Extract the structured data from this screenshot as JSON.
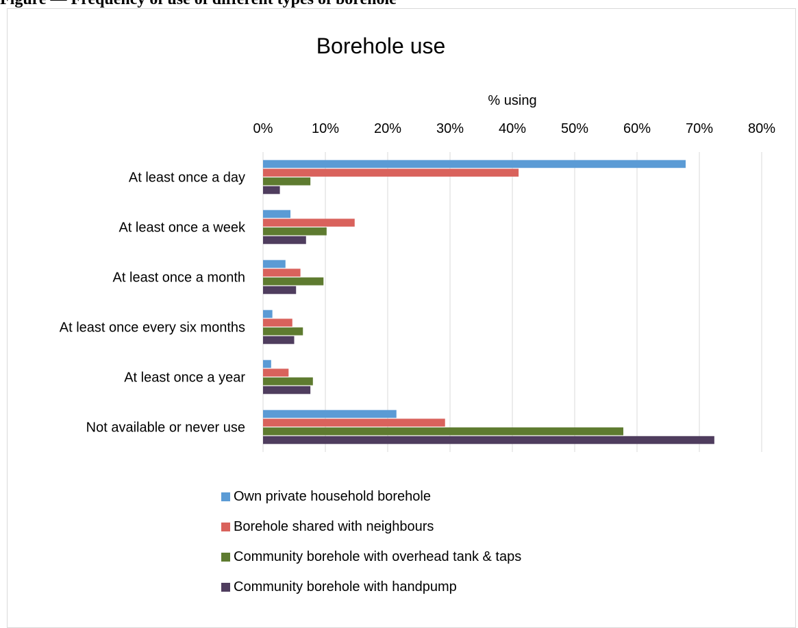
{
  "caption": "Figure — Frequency of use of different types of borehole",
  "chart_data": {
    "type": "bar",
    "orientation": "horizontal",
    "title": "Borehole use",
    "xlabel": "% using",
    "ylabel": "",
    "xlim": [
      0,
      0.8
    ],
    "x_ticks": [
      "0%",
      "10%",
      "20%",
      "30%",
      "40%",
      "50%",
      "60%",
      "70%",
      "80%"
    ],
    "x_axis_position": "top",
    "grid": true,
    "legend_position": "bottom",
    "categories": [
      "At least once a day",
      "At least once a week",
      "At least once a month",
      "At least once every six months",
      "At least once a year",
      "Not available or never use"
    ],
    "series": [
      {
        "name": "Own private household borehole",
        "color": "#5b9bd5",
        "values": [
          0.678,
          0.044,
          0.036,
          0.015,
          0.013,
          0.214
        ]
      },
      {
        "name": "Borehole shared with neighbours",
        "color": "#d9625c",
        "values": [
          0.41,
          0.147,
          0.06,
          0.047,
          0.041,
          0.292
        ]
      },
      {
        "name": "Community borehole with overhead tank & taps",
        "color": "#5e7b30",
        "values": [
          0.076,
          0.102,
          0.097,
          0.064,
          0.08,
          0.578
        ]
      },
      {
        "name": "Community borehole with handpump",
        "color": "#4f3d5e",
        "values": [
          0.027,
          0.069,
          0.053,
          0.05,
          0.076,
          0.724
        ]
      }
    ]
  }
}
